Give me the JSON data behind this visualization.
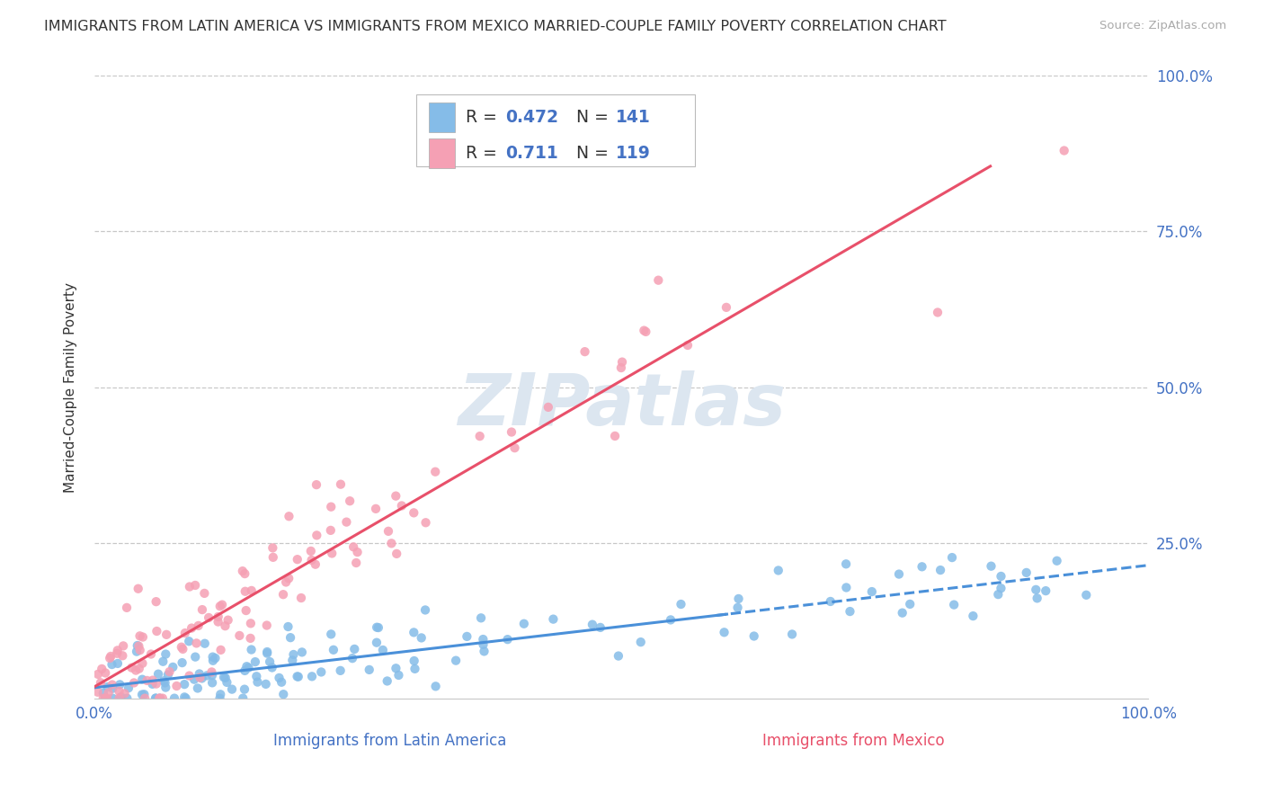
{
  "title": "IMMIGRANTS FROM LATIN AMERICA VS IMMIGRANTS FROM MEXICO MARRIED-COUPLE FAMILY POVERTY CORRELATION CHART",
  "source": "Source: ZipAtlas.com",
  "ylabel": "Married-Couple Family Poverty",
  "ytick_labels": [
    "",
    "25.0%",
    "50.0%",
    "75.0%",
    "100.0%"
  ],
  "ytick_values": [
    0,
    0.25,
    0.5,
    0.75,
    1.0
  ],
  "xbottom_labels": [
    "Immigrants from Latin America",
    "Immigrants from Mexico"
  ],
  "R_latin": 0.472,
  "N_latin": 141,
  "R_mexico": 0.711,
  "N_mexico": 119,
  "color_latin": "#85bce8",
  "color_mexico": "#f5a0b4",
  "color_latin_line": "#4a90d9",
  "color_mexico_line": "#e8506a",
  "color_text_dark": "#333333",
  "color_text_blue": "#4472c4",
  "color_text_pink": "#e8506a",
  "background_color": "#ffffff",
  "grid_color": "#c8c8c8",
  "watermark_color": "#dce6f0",
  "xtick_left": "0.0%",
  "xtick_right": "100.0%"
}
